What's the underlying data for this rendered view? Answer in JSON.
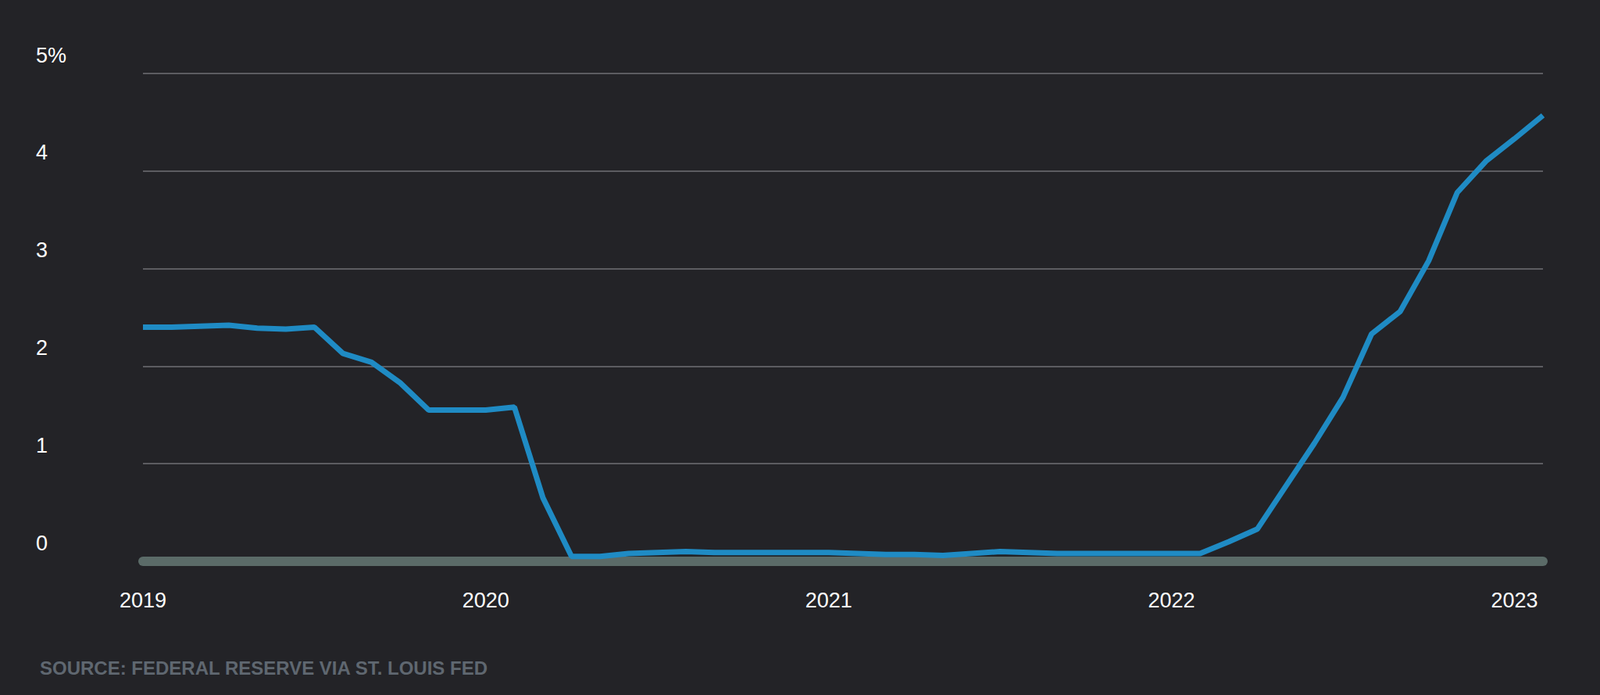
{
  "chart_data": {
    "type": "line",
    "source": "SOURCE: FEDERAL RESERVE VIA ST. LOUIS FED",
    "categories": [
      "2019",
      null,
      null,
      null,
      null,
      null,
      null,
      null,
      null,
      null,
      null,
      null,
      "2020",
      null,
      null,
      null,
      null,
      null,
      null,
      null,
      null,
      null,
      null,
      null,
      "2021",
      null,
      null,
      null,
      null,
      null,
      null,
      null,
      null,
      null,
      null,
      null,
      "2022",
      null,
      null,
      null,
      null,
      null,
      null,
      null,
      null,
      null,
      null,
      null,
      "2023",
      null
    ],
    "values": [
      2.4,
      2.4,
      2.41,
      2.42,
      2.39,
      2.38,
      2.4,
      2.13,
      2.04,
      1.83,
      1.55,
      1.55,
      1.55,
      1.58,
      0.65,
      0.05,
      0.05,
      0.08,
      0.09,
      0.1,
      0.09,
      0.09,
      0.09,
      0.09,
      0.09,
      0.08,
      0.07,
      0.07,
      0.06,
      0.08,
      0.1,
      0.09,
      0.08,
      0.08,
      0.08,
      0.08,
      0.08,
      0.08,
      0.2,
      0.33,
      0.77,
      1.21,
      1.68,
      2.33,
      2.56,
      3.08,
      3.78,
      4.1,
      4.33,
      4.57
    ],
    "color": "#1f8bc4",
    "marker": "none",
    "ylim": [
      0,
      5
    ],
    "yticks": [
      0,
      1,
      2,
      3,
      4,
      {
        "value": 5,
        "label": "5%"
      }
    ],
    "grid": true
  }
}
